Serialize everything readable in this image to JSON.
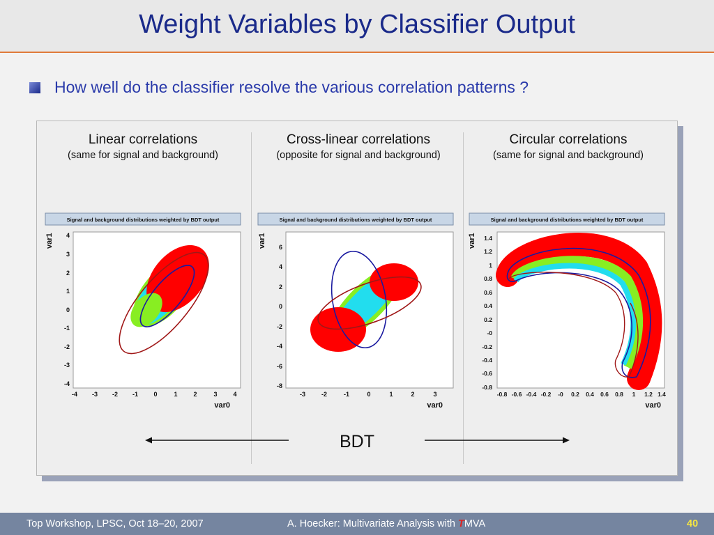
{
  "slide": {
    "title": "Weight Variables by Classifier Output",
    "bullet": "How well do the classifier resolve the various correlation patterns ?"
  },
  "columns": [
    {
      "title": "Linear correlations",
      "subtitle": "(same for signal and background)"
    },
    {
      "title": "Cross-linear correlations",
      "subtitle": "(opposite for signal and background)"
    },
    {
      "title": "Circular correlations",
      "subtitle": "(same for signal and background)"
    }
  ],
  "plots": [
    {
      "header": "Signal and background distributions weighted by BDT output",
      "xlabel": "var0",
      "ylabel": "var1",
      "xticks": [
        "-4",
        "-3",
        "-2",
        "-1",
        "0",
        "1",
        "2",
        "3",
        "4"
      ],
      "yticks": [
        "4",
        "3",
        "2",
        "1",
        "0",
        "-1",
        "-2",
        "-3",
        "-4"
      ]
    },
    {
      "header": "Signal and background distributions weighted by BDT output",
      "xlabel": "var0",
      "ylabel": "var1",
      "xticks": [
        "-3",
        "-2",
        "-1",
        "0",
        "1",
        "2",
        "3"
      ],
      "yticks": [
        "6",
        "4",
        "2",
        "0",
        "-2",
        "-4",
        "-6",
        "-8"
      ]
    },
    {
      "header": "Signal and background distributions weighted by BDT output",
      "xlabel": "var0",
      "ylabel": "var1",
      "xticks": [
        "-0.8",
        "-0.6",
        "-0.4",
        "-0.2",
        "-0",
        "0.2",
        "0.4",
        "0.6",
        "0.8",
        "1",
        "1.2",
        "1.4"
      ],
      "yticks": [
        "1.4",
        "1.2",
        "1",
        "0.8",
        "0.6",
        "0.4",
        "0.2",
        "-0",
        "-0.2",
        "-0.4",
        "-0.6",
        "-0.8"
      ]
    }
  ],
  "bdt_label": "BDT",
  "footer": {
    "left": "Top Workshop, LPSC, Oct 18–20, 2007",
    "mid_prefix": "A. Hoecker: Multivariate Analysis with ",
    "mid_t": "T",
    "mid_suffix": "MVA",
    "page": "40"
  },
  "colors": {
    "title": "#1a2a8a",
    "accent": "#e07a3a",
    "footer_bg": "#7585a0",
    "red": "#ff0000",
    "green": "#88ee22",
    "cyan": "#22ddee",
    "contour_blue": "#1a1aa0",
    "contour_red": "#a01818"
  }
}
